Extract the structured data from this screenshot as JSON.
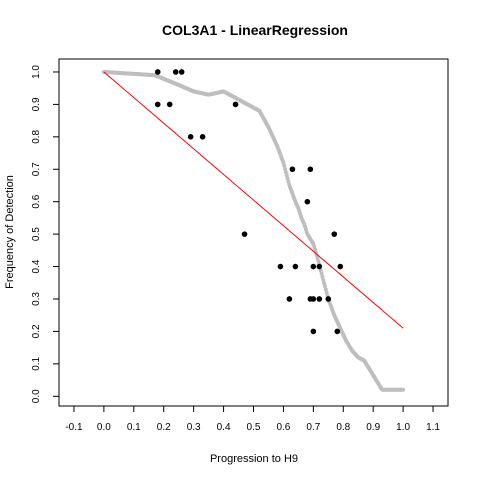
{
  "chart_data": {
    "type": "scatter",
    "title": "COL3A1 - LinearRegression",
    "xlabel": "Progression to H9",
    "ylabel": "Frequency of Detection",
    "xlim": [
      -0.15,
      1.15
    ],
    "ylim": [
      -0.03,
      1.04
    ],
    "x_ticks": [
      "-0.1",
      "0.0",
      "0.1",
      "0.2",
      "0.3",
      "0.4",
      "0.5",
      "0.6",
      "0.7",
      "0.8",
      "0.9",
      "1.0",
      "1.1"
    ],
    "x_tick_values": [
      -0.1,
      0.0,
      0.1,
      0.2,
      0.3,
      0.4,
      0.5,
      0.6,
      0.7,
      0.8,
      0.9,
      1.0,
      1.1
    ],
    "y_ticks": [
      "0.0",
      "0.1",
      "0.2",
      "0.3",
      "0.4",
      "0.5",
      "0.6",
      "0.7",
      "0.8",
      "0.9",
      "1.0"
    ],
    "y_tick_values": [
      0.0,
      0.1,
      0.2,
      0.3,
      0.4,
      0.5,
      0.6,
      0.7,
      0.8,
      0.9,
      1.0
    ],
    "grid": false,
    "legend": "none",
    "colors": {
      "points": "#000000",
      "smooth": "#bebebe",
      "regression": "#ff0000",
      "frame": "#000000"
    },
    "series": [
      {
        "kind": "points",
        "x": [
          0.18,
          0.24,
          0.26,
          0.18,
          0.22,
          0.44,
          0.29,
          0.33,
          0.47,
          0.63,
          0.69,
          0.68,
          0.77,
          0.59,
          0.64,
          0.7,
          0.72,
          0.79,
          0.62,
          0.69,
          0.7,
          0.72,
          0.75,
          0.7,
          0.78
        ],
        "y": [
          1.0,
          1.0,
          1.0,
          0.9,
          0.9,
          0.9,
          0.8,
          0.8,
          0.5,
          0.7,
          0.7,
          0.6,
          0.5,
          0.4,
          0.4,
          0.4,
          0.4,
          0.4,
          0.3,
          0.3,
          0.3,
          0.3,
          0.3,
          0.2,
          0.2
        ]
      },
      {
        "kind": "smooth",
        "x": [
          0.0,
          0.17,
          0.25,
          0.3,
          0.35,
          0.4,
          0.44,
          0.48,
          0.52,
          0.55,
          0.58,
          0.6,
          0.62,
          0.64,
          0.65,
          0.66,
          0.67,
          0.68,
          0.7,
          0.71,
          0.73,
          0.75,
          0.77,
          0.79,
          0.81,
          0.83,
          0.85,
          0.87,
          0.89,
          0.91,
          0.93,
          0.95,
          1.0
        ],
        "y": [
          1.0,
          0.99,
          0.96,
          0.94,
          0.93,
          0.94,
          0.92,
          0.9,
          0.88,
          0.83,
          0.77,
          0.72,
          0.65,
          0.6,
          0.58,
          0.55,
          0.53,
          0.5,
          0.47,
          0.44,
          0.37,
          0.3,
          0.25,
          0.21,
          0.17,
          0.14,
          0.12,
          0.11,
          0.08,
          0.05,
          0.02,
          0.02,
          0.02
        ]
      },
      {
        "kind": "regression",
        "x": [
          0.0,
          1.0
        ],
        "y": [
          1.0,
          0.21
        ]
      }
    ]
  }
}
